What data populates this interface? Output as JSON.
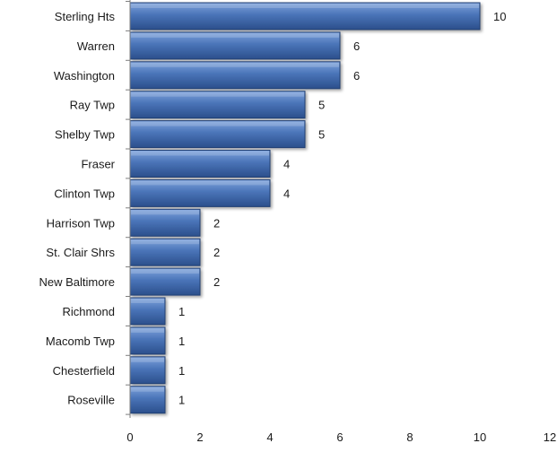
{
  "chart_data": {
    "type": "bar",
    "orientation": "horizontal",
    "categories": [
      "Sterling Hts",
      "Warren",
      "Washington",
      "Ray Twp",
      "Shelby Twp",
      "Fraser",
      "Clinton Twp",
      "Harrison Twp",
      "St. Clair Shrs",
      "New Baltimore",
      "Richmond",
      "Macomb Twp",
      "Chesterfield",
      "Roseville"
    ],
    "values": [
      10,
      6,
      6,
      5,
      5,
      4,
      4,
      2,
      2,
      2,
      1,
      1,
      1,
      1
    ],
    "data_labels": [
      "10",
      "6",
      "6",
      "5",
      "5",
      "4",
      "4",
      "2",
      "2",
      "2",
      "1",
      "1",
      "1",
      "1"
    ],
    "x_ticks": [
      0,
      2,
      4,
      6,
      8,
      10,
      12
    ],
    "x_tick_labels": [
      "0",
      "2",
      "4",
      "6",
      "8",
      "10",
      "12"
    ],
    "xlim": [
      0,
      12
    ],
    "title": "",
    "xlabel": "",
    "ylabel": "",
    "grid": false,
    "legend": false,
    "colors": {
      "bar_fill": "#4a74b8",
      "bar_light": "#7ea3dc",
      "bar_dark": "#2b4f8c",
      "bar_edge": "#203f73",
      "axis": "#7f7f7f",
      "text": "#1a1a1a"
    }
  }
}
